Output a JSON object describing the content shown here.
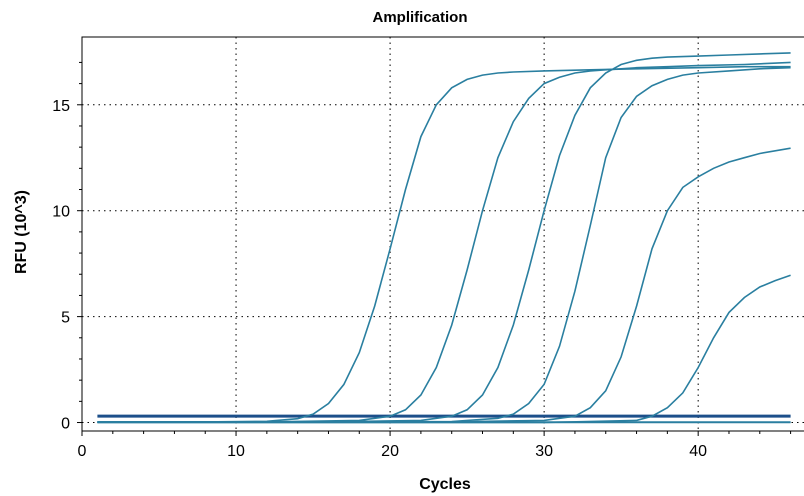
{
  "chart_data": {
    "type": "line",
    "title": "Amplification",
    "xlabel": "Cycles",
    "ylabel": "RFU (10^3)",
    "xlim": [
      0,
      47
    ],
    "ylim": [
      -0.4,
      18.2
    ],
    "xticks": [
      0,
      10,
      20,
      30,
      40
    ],
    "yticks": [
      0,
      5,
      10,
      15
    ],
    "grid": true,
    "colors": {
      "curve": "#2a7fa0",
      "threshold": "#1c4f8a"
    },
    "threshold": 0.3,
    "series": [
      {
        "x": [
          1,
          4,
          8,
          12,
          14,
          15,
          16,
          17,
          18,
          19,
          20,
          21,
          22,
          23,
          24,
          25,
          26,
          27,
          28,
          30,
          33,
          36,
          40,
          43,
          46
        ],
        "y": [
          0.02,
          0.02,
          0.03,
          0.06,
          0.18,
          0.4,
          0.9,
          1.8,
          3.3,
          5.5,
          8.2,
          11.0,
          13.5,
          15.0,
          15.8,
          16.2,
          16.4,
          16.5,
          16.55,
          16.6,
          16.65,
          16.7,
          16.75,
          16.8,
          16.8
        ]
      },
      {
        "x": [
          1,
          6,
          12,
          18,
          20,
          21,
          22,
          23,
          24,
          25,
          26,
          27,
          28,
          29,
          30,
          31,
          32,
          33,
          34,
          35,
          36,
          38,
          40,
          43,
          46
        ],
        "y": [
          0.02,
          0.02,
          0.03,
          0.1,
          0.3,
          0.6,
          1.3,
          2.6,
          4.6,
          7.2,
          10.0,
          12.5,
          14.2,
          15.3,
          16.0,
          16.3,
          16.5,
          16.6,
          16.65,
          16.7,
          16.75,
          16.8,
          16.85,
          16.9,
          17.0
        ]
      },
      {
        "x": [
          1,
          8,
          16,
          22,
          24,
          25,
          26,
          27,
          28,
          29,
          30,
          31,
          32,
          33,
          34,
          35,
          36,
          37,
          38,
          40,
          42,
          44,
          46
        ],
        "y": [
          0.02,
          0.02,
          0.03,
          0.1,
          0.3,
          0.6,
          1.3,
          2.6,
          4.6,
          7.2,
          10.0,
          12.6,
          14.5,
          15.8,
          16.5,
          16.9,
          17.1,
          17.2,
          17.25,
          17.3,
          17.35,
          17.4,
          17.45
        ]
      },
      {
        "x": [
          1,
          8,
          16,
          24,
          27,
          28,
          29,
          30,
          31,
          32,
          33,
          34,
          35,
          36,
          37,
          38,
          39,
          40,
          42,
          44,
          46
        ],
        "y": [
          0.02,
          0.02,
          0.03,
          0.05,
          0.2,
          0.4,
          0.9,
          1.8,
          3.6,
          6.2,
          9.3,
          12.5,
          14.4,
          15.4,
          15.9,
          16.2,
          16.4,
          16.5,
          16.6,
          16.7,
          16.75
        ]
      },
      {
        "x": [
          1,
          8,
          16,
          24,
          30,
          32,
          33,
          34,
          35,
          36,
          37,
          38,
          39,
          40,
          41,
          42,
          43,
          44,
          46
        ],
        "y": [
          0.02,
          0.02,
          0.02,
          0.03,
          0.1,
          0.3,
          0.7,
          1.5,
          3.1,
          5.5,
          8.2,
          10.0,
          11.1,
          11.6,
          12.0,
          12.3,
          12.5,
          12.7,
          12.95
        ]
      },
      {
        "x": [
          1,
          10,
          20,
          30,
          36,
          37,
          38,
          39,
          40,
          41,
          42,
          43,
          44,
          45,
          46
        ],
        "y": [
          0.0,
          0.0,
          0.0,
          0.0,
          0.1,
          0.3,
          0.7,
          1.4,
          2.6,
          4.0,
          5.2,
          5.9,
          6.4,
          6.7,
          6.95
        ]
      }
    ],
    "baseline_series": [
      {
        "x": [
          1,
          46
        ],
        "y": [
          0.02,
          0.02
        ]
      },
      {
        "x": [
          1,
          46
        ],
        "y": [
          0.0,
          0.0
        ]
      }
    ]
  }
}
